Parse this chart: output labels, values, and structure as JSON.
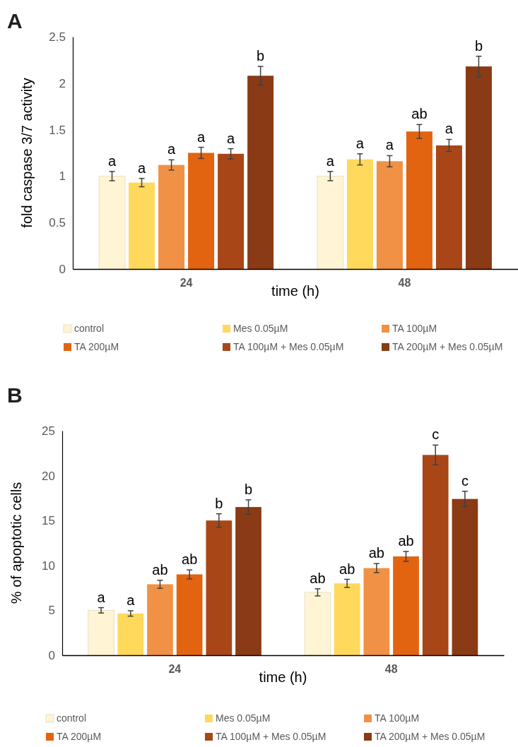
{
  "chart_data": [
    {
      "type": "bar",
      "title": "A",
      "xlabel": "time (h)",
      "ylabel": "fold caspase 3/7 activity",
      "categories": [
        "24",
        "48"
      ],
      "ylim": [
        0,
        2.5
      ],
      "yticks": [
        0,
        0.5,
        1,
        1.5,
        2,
        2.5
      ],
      "grid": false,
      "legend": "bottom",
      "series": [
        {
          "name": "control",
          "color": "#fff4d4",
          "values": [
            1.0,
            1.0
          ],
          "errors": [
            0.05,
            0.05
          ],
          "value_labels": [
            "a",
            "a"
          ]
        },
        {
          "name": "Mes 0.05µM",
          "color": "#ffd95c",
          "values": [
            0.93,
            1.18
          ],
          "errors": [
            0.045,
            0.06
          ],
          "value_labels": [
            "a",
            "a"
          ]
        },
        {
          "name": "TA 100µM",
          "color": "#f09145",
          "values": [
            1.12,
            1.16
          ],
          "errors": [
            0.055,
            0.06
          ],
          "value_labels": [
            "a",
            "a"
          ]
        },
        {
          "name": "TA 200µM",
          "color": "#e26310",
          "values": [
            1.25,
            1.48
          ],
          "errors": [
            0.06,
            0.075
          ],
          "value_labels": [
            "a",
            "ab"
          ]
        },
        {
          "name": "TA 100µM + Mes 0.05µM",
          "color": "#a84618",
          "values": [
            1.24,
            1.33
          ],
          "errors": [
            0.055,
            0.065
          ],
          "value_labels": [
            "a",
            "a"
          ]
        },
        {
          "name": "TA 200µM + Mes 0.05µM",
          "color": "#8a3a14",
          "values": [
            2.08,
            2.18
          ],
          "errors": [
            0.1,
            0.11
          ],
          "value_labels": [
            "b",
            "b"
          ]
        }
      ]
    },
    {
      "type": "bar",
      "title": "B",
      "xlabel": "time (h)",
      "ylabel": "% of apoptotic cells",
      "categories": [
        "24",
        "48"
      ],
      "ylim": [
        0,
        25
      ],
      "yticks": [
        0,
        5,
        10,
        15,
        20,
        25
      ],
      "grid": false,
      "legend": "bottom",
      "series": [
        {
          "name": "control",
          "color": "#fff4d4",
          "values": [
            5.0,
            7.0
          ],
          "errors": [
            0.3,
            0.4
          ],
          "value_labels": [
            "a",
            "ab"
          ]
        },
        {
          "name": "Mes 0.05µM",
          "color": "#ffd95c",
          "values": [
            4.65,
            8.0
          ],
          "errors": [
            0.3,
            0.45
          ],
          "value_labels": [
            "a",
            "ab"
          ]
        },
        {
          "name": "TA 100µM",
          "color": "#f09145",
          "values": [
            7.9,
            9.7
          ],
          "errors": [
            0.45,
            0.5
          ],
          "value_labels": [
            "ab",
            "ab"
          ]
        },
        {
          "name": "TA 200µM",
          "color": "#e26310",
          "values": [
            9.0,
            11.0
          ],
          "errors": [
            0.5,
            0.55
          ],
          "value_labels": [
            "ab",
            "ab"
          ]
        },
        {
          "name": "TA 100µM + Mes 0.05µM",
          "color": "#a84618",
          "values": [
            15.0,
            22.3
          ],
          "errors": [
            0.75,
            1.1
          ],
          "value_labels": [
            "b",
            "c"
          ]
        },
        {
          "name": "TA 200µM + Mes 0.05µM",
          "color": "#8a3a14",
          "values": [
            16.5,
            17.4
          ],
          "errors": [
            0.8,
            0.85
          ],
          "value_labels": [
            "b",
            "c"
          ]
        }
      ]
    }
  ]
}
